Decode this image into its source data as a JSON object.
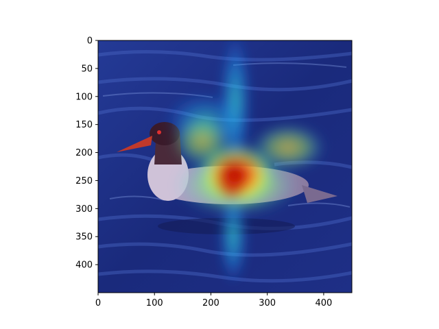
{
  "figure": {
    "description_image": "heatmap overlay on swimming merganser duck",
    "colors": {
      "water_dark": "#16226b",
      "water_mid": "#2a3f9a",
      "water_light": "#5a7ad0",
      "axis": "#000000",
      "background": "#ffffff"
    }
  },
  "axes": {
    "xlim": [
      0,
      450
    ],
    "ylim": [
      450,
      0
    ],
    "x_ticks": [
      {
        "value": 0,
        "label": "0"
      },
      {
        "value": 100,
        "label": "100"
      },
      {
        "value": 200,
        "label": "200"
      },
      {
        "value": 300,
        "label": "300"
      },
      {
        "value": 400,
        "label": "400"
      }
    ],
    "y_ticks": [
      {
        "value": 0,
        "label": "0"
      },
      {
        "value": 50,
        "label": "50"
      },
      {
        "value": 100,
        "label": "100"
      },
      {
        "value": 150,
        "label": "150"
      },
      {
        "value": 200,
        "label": "200"
      },
      {
        "value": 250,
        "label": "250"
      },
      {
        "value": 300,
        "label": "300"
      },
      {
        "value": 350,
        "label": "350"
      },
      {
        "value": 400,
        "label": "400"
      }
    ]
  }
}
